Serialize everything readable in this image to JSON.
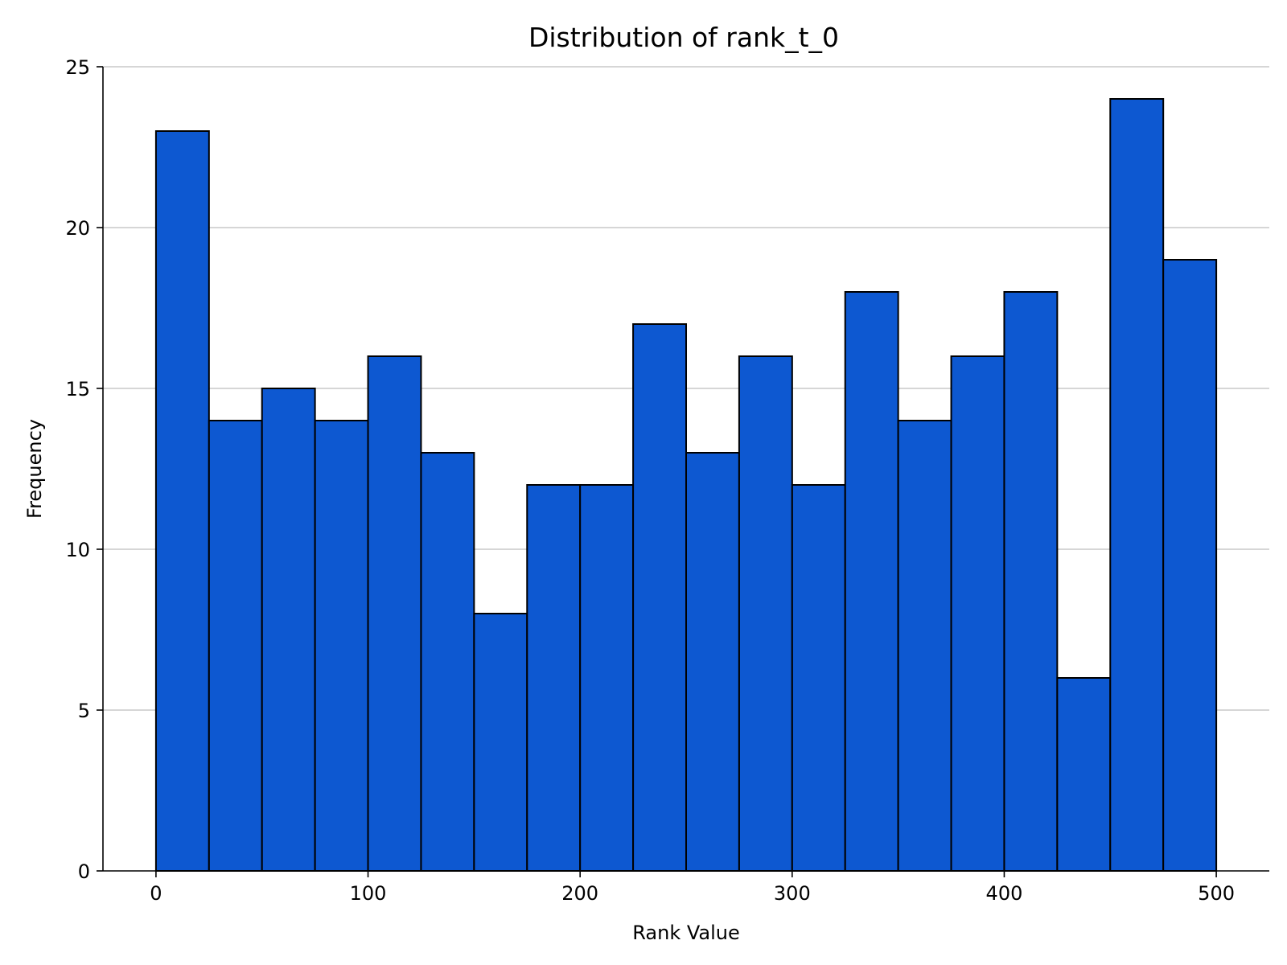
{
  "chart_data": {
    "type": "bar",
    "title": "Distribution of rank_t_0",
    "xlabel": "Rank Value",
    "ylabel": "Frequency",
    "bin_edges": [
      0,
      25,
      50,
      75,
      100,
      125,
      150,
      175,
      200,
      225,
      250,
      275,
      300,
      325,
      350,
      375,
      400,
      425,
      450,
      475,
      500
    ],
    "values": [
      23,
      14,
      15,
      14,
      16,
      13,
      8,
      12,
      12,
      17,
      13,
      16,
      12,
      18,
      14,
      16,
      18,
      6,
      24,
      19
    ],
    "xlim": [
      -25,
      525
    ],
    "ylim": [
      0,
      25
    ],
    "xticks": [
      0,
      100,
      200,
      300,
      400,
      500
    ],
    "xtick_labels": [
      "0",
      "100",
      "200",
      "300",
      "400",
      "500"
    ],
    "yticks": [
      0,
      5,
      10,
      15,
      20,
      25
    ],
    "ytick_labels": [
      "0",
      "5",
      "10",
      "15",
      "20",
      "25"
    ],
    "grid": "y-axis",
    "bar_color": "#0d58d1",
    "edge_color": "#000000",
    "grid_color": "#c8c8c8"
  }
}
